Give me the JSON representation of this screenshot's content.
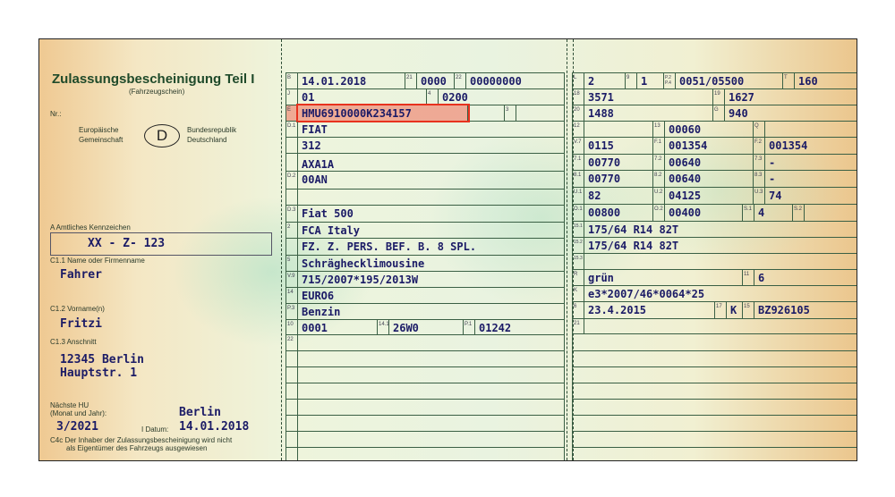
{
  "left": {
    "title": "Zulassungsbescheinigung Teil I",
    "subtitle": "(Fahrzeugschein)",
    "nr_label": "Nr.:",
    "eu_line1": "Europäische",
    "eu_line2": "Gemeinschaft",
    "country_code": "D",
    "brd_line1": "Bundesrepublik",
    "brd_line2": "Deutschland",
    "plate_label": "A Amtliches Kennzeichen",
    "plate": "XX - Z- 123",
    "name_label": "C1.1 Name oder Firmenname",
    "name": "Fahrer",
    "first_label": "C1.2 Vorname(n)",
    "first": "Fritzi",
    "addr_label": "C1.3 Anschnitt",
    "addr1": "12345 Berlin",
    "addr2": "Hauptstr. 1",
    "hu_label1": "Nächste HU",
    "hu_label2": "(Monat und Jahr):",
    "hu": "3/2021",
    "place": "Berlin",
    "date_label": "I Datum:",
    "date": "14.01.2018",
    "c4c_1": "C4c Der Inhaber der Zulassungsbescheinigung wird nicht",
    "c4c_2": "als Eigentümer des Fahrzeugs ausgewiesen"
  },
  "mid": {
    "B": {
      "l": "B",
      "v": "14.01.2018",
      "l21": "21",
      "v21": "0000",
      "l22": "22",
      "v22": "00000000"
    },
    "J": {
      "l": "J",
      "v": "01",
      "l4": "4",
      "v4": "0200"
    },
    "E": {
      "l": "E",
      "v": "HMU6910000K234157",
      "l3": "3"
    },
    "D1": {
      "l": "D.1",
      "v1": "FIAT",
      "v2": "312"
    },
    "D2": {
      "l": "D.2",
      "v1": "AXA1A",
      "v2": "00AN"
    },
    "D3": {
      "l": "D.3",
      "v": "Fiat 500"
    },
    "f2": {
      "l": "2",
      "v": "FCA Italy"
    },
    "f5": {
      "l": "5",
      "v1": "FZ. Z. PERS. BEF. B. 8 SPL.",
      "v2": "Schräghecklimousine"
    },
    "V9": {
      "l": "V.9",
      "v": "715/2007*195/2013W"
    },
    "f14": {
      "l": "14",
      "v": "EURO6"
    },
    "P3": {
      "l": "P.3",
      "v": "Benzin"
    },
    "f10": {
      "l": "10",
      "v": "0001",
      "l141": "14.1",
      "v141": "26W0",
      "lP1": "P.1",
      "vP1": "01242"
    },
    "f22": {
      "l": "22"
    }
  },
  "right": {
    "L": {
      "l": "L",
      "v": "2",
      "l9": "9",
      "v9": "1",
      "lP": "P.2\nP.4",
      "vP": "0051/05500",
      "lT": "T",
      "vT": "160"
    },
    "r18": {
      "l": "18",
      "v": "3571",
      "l19": "19",
      "v19": "1627"
    },
    "r20": {
      "l": "20",
      "v": "1488",
      "lG": "G",
      "vG": "940"
    },
    "r12": {
      "l": "12",
      "v": "",
      "l13": "13",
      "v13": "00060",
      "lQ": "Q",
      "vQ": ""
    },
    "V7": {
      "l": "V.7",
      "v": "0115",
      "lF1": "F.1",
      "vF1": "001354",
      "lF2": "F.2",
      "vF2": "001354"
    },
    "r71": {
      "l": "7.1",
      "v": "00770",
      "l2": "7.2",
      "v2": "00640",
      "l3": "7.3",
      "v3": "-"
    },
    "r81": {
      "l": "8.1",
      "v": "00770",
      "l2": "8.2",
      "v2": "00640",
      "l3": "8.3",
      "v3": "-"
    },
    "U1": {
      "l": "U.1",
      "v": "82",
      "l2": "U.2",
      "v2": "04125",
      "l3": "U.3",
      "v3": "74"
    },
    "O1": {
      "l": "O.1",
      "v": "00800",
      "l2": "O.2",
      "v2": "00400",
      "lS1": "S.1",
      "vS1": "4",
      "lS2": "S.2"
    },
    "r151": {
      "l": "15.1",
      "v": "175/64 R14 82T"
    },
    "r152": {
      "l": "15.2",
      "v": "175/64 R14 82T"
    },
    "r153": {
      "l": "15.3",
      "v": ""
    },
    "R": {
      "l": "R",
      "v": "grün",
      "l11": "11",
      "v11": "6"
    },
    "K": {
      "l": "K",
      "v": "e3*2007/46*0064*25"
    },
    "r6": {
      "l": "6",
      "v": "23.4.2015",
      "l17": "17",
      "v17": "K",
      "l15": "15",
      "v15": "BZ926105"
    },
    "r21": {
      "l": "21"
    }
  },
  "colors": {
    "ink": "#1b1b66",
    "title": "#1f4a2a",
    "highlight": "#e8321e"
  }
}
